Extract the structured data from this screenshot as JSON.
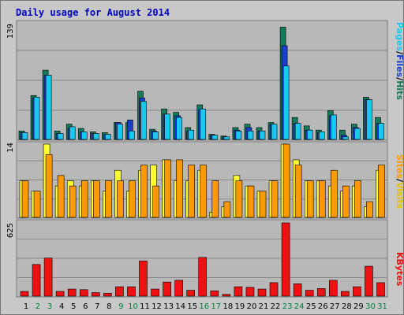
{
  "title": "Daily usage for August 2014",
  "colors": {
    "hits": "#157a5c",
    "files": "#1a3fd0",
    "pages": "#19c8f0",
    "visits": "#ffff33",
    "sites": "#ff9900",
    "kbytes": "#ee1111",
    "weekend_label": "#008040",
    "weekday_label": "#000000",
    "panel_bg": "#b8b8b8",
    "frame_bg": "#c8c8c8",
    "title": "#0000c0"
  },
  "chart_data": [
    {
      "type": "bar",
      "panel": "hits_files_pages",
      "y_max_label": "139",
      "ylim": [
        0,
        139
      ],
      "legend": [
        "Pages",
        "/",
        "Files",
        "/",
        "Hits"
      ],
      "categories": [
        "1",
        "2",
        "3",
        "4",
        "5",
        "6",
        "7",
        "8",
        "9",
        "10",
        "11",
        "12",
        "13",
        "14",
        "15",
        "16",
        "17",
        "18",
        "19",
        "20",
        "21",
        "22",
        "23",
        "24",
        "25",
        "26",
        "27",
        "28",
        "29",
        "30",
        "31"
      ],
      "weekend_days": [
        "2",
        "3",
        "9",
        "10",
        "16",
        "17",
        "23",
        "24",
        "30",
        "31"
      ],
      "series": [
        {
          "name": "Hits",
          "values": [
            10,
            52,
            82,
            10,
            18,
            13,
            9,
            8,
            20,
            20,
            57,
            12,
            36,
            32,
            14,
            41,
            6,
            4,
            14,
            18,
            14,
            20,
            133,
            26,
            16,
            11,
            34,
            11,
            18,
            50,
            26
          ]
        },
        {
          "name": "Files",
          "values": [
            8,
            49,
            76,
            7,
            13,
            9,
            7,
            6,
            20,
            23,
            49,
            10,
            30,
            28,
            10,
            35,
            5,
            3,
            11,
            14,
            10,
            18,
            111,
            19,
            11,
            8,
            28,
            5,
            14,
            47,
            19
          ]
        },
        {
          "name": "Pages",
          "values": [
            8,
            50,
            76,
            7,
            15,
            9,
            7,
            6,
            18,
            10,
            45,
            9,
            30,
            26,
            11,
            36,
            5,
            3,
            10,
            10,
            10,
            18,
            87,
            19,
            11,
            9,
            29,
            3,
            13,
            47,
            19
          ]
        }
      ]
    },
    {
      "type": "bar",
      "panel": "visits_sites",
      "y_max_label": "14",
      "ylim": [
        0,
        14
      ],
      "legend": [
        "Sites",
        "/",
        "Visits"
      ],
      "categories": [
        "1",
        "2",
        "3",
        "4",
        "5",
        "6",
        "7",
        "8",
        "9",
        "10",
        "11",
        "12",
        "13",
        "14",
        "15",
        "16",
        "17",
        "18",
        "19",
        "20",
        "21",
        "22",
        "23",
        "24",
        "25",
        "26",
        "27",
        "28",
        "29",
        "30",
        "31"
      ],
      "series": [
        {
          "name": "Visits",
          "values": [
            7,
            5,
            14,
            6,
            7,
            6,
            7,
            5,
            9,
            5,
            9,
            10,
            11,
            7,
            7,
            9,
            1,
            2,
            8,
            6,
            5,
            7,
            14,
            11,
            7,
            7,
            6,
            5,
            6,
            2,
            9
          ]
        },
        {
          "name": "Sites",
          "values": [
            7,
            5,
            12,
            8,
            6,
            7,
            7,
            7,
            7,
            7,
            10,
            6,
            11,
            11,
            10,
            10,
            7,
            3,
            7,
            6,
            5,
            7,
            14,
            10,
            7,
            7,
            9,
            6,
            7,
            3,
            10
          ]
        }
      ]
    },
    {
      "type": "bar",
      "panel": "kbytes",
      "y_max_label": "625",
      "ylim": [
        0,
        625
      ],
      "legend": [
        "KBytes"
      ],
      "categories": [
        "1",
        "2",
        "3",
        "4",
        "5",
        "6",
        "7",
        "8",
        "9",
        "10",
        "11",
        "12",
        "13",
        "14",
        "15",
        "16",
        "17",
        "18",
        "19",
        "20",
        "21",
        "22",
        "23",
        "24",
        "25",
        "26",
        "27",
        "28",
        "29",
        "30",
        "31"
      ],
      "series": [
        {
          "name": "KBytes",
          "values": [
            40,
            270,
            325,
            40,
            60,
            55,
            30,
            25,
            80,
            80,
            300,
            60,
            120,
            135,
            50,
            330,
            45,
            15,
            80,
            75,
            60,
            115,
            625,
            105,
            50,
            65,
            135,
            40,
            80,
            255,
            115
          ]
        }
      ]
    }
  ]
}
